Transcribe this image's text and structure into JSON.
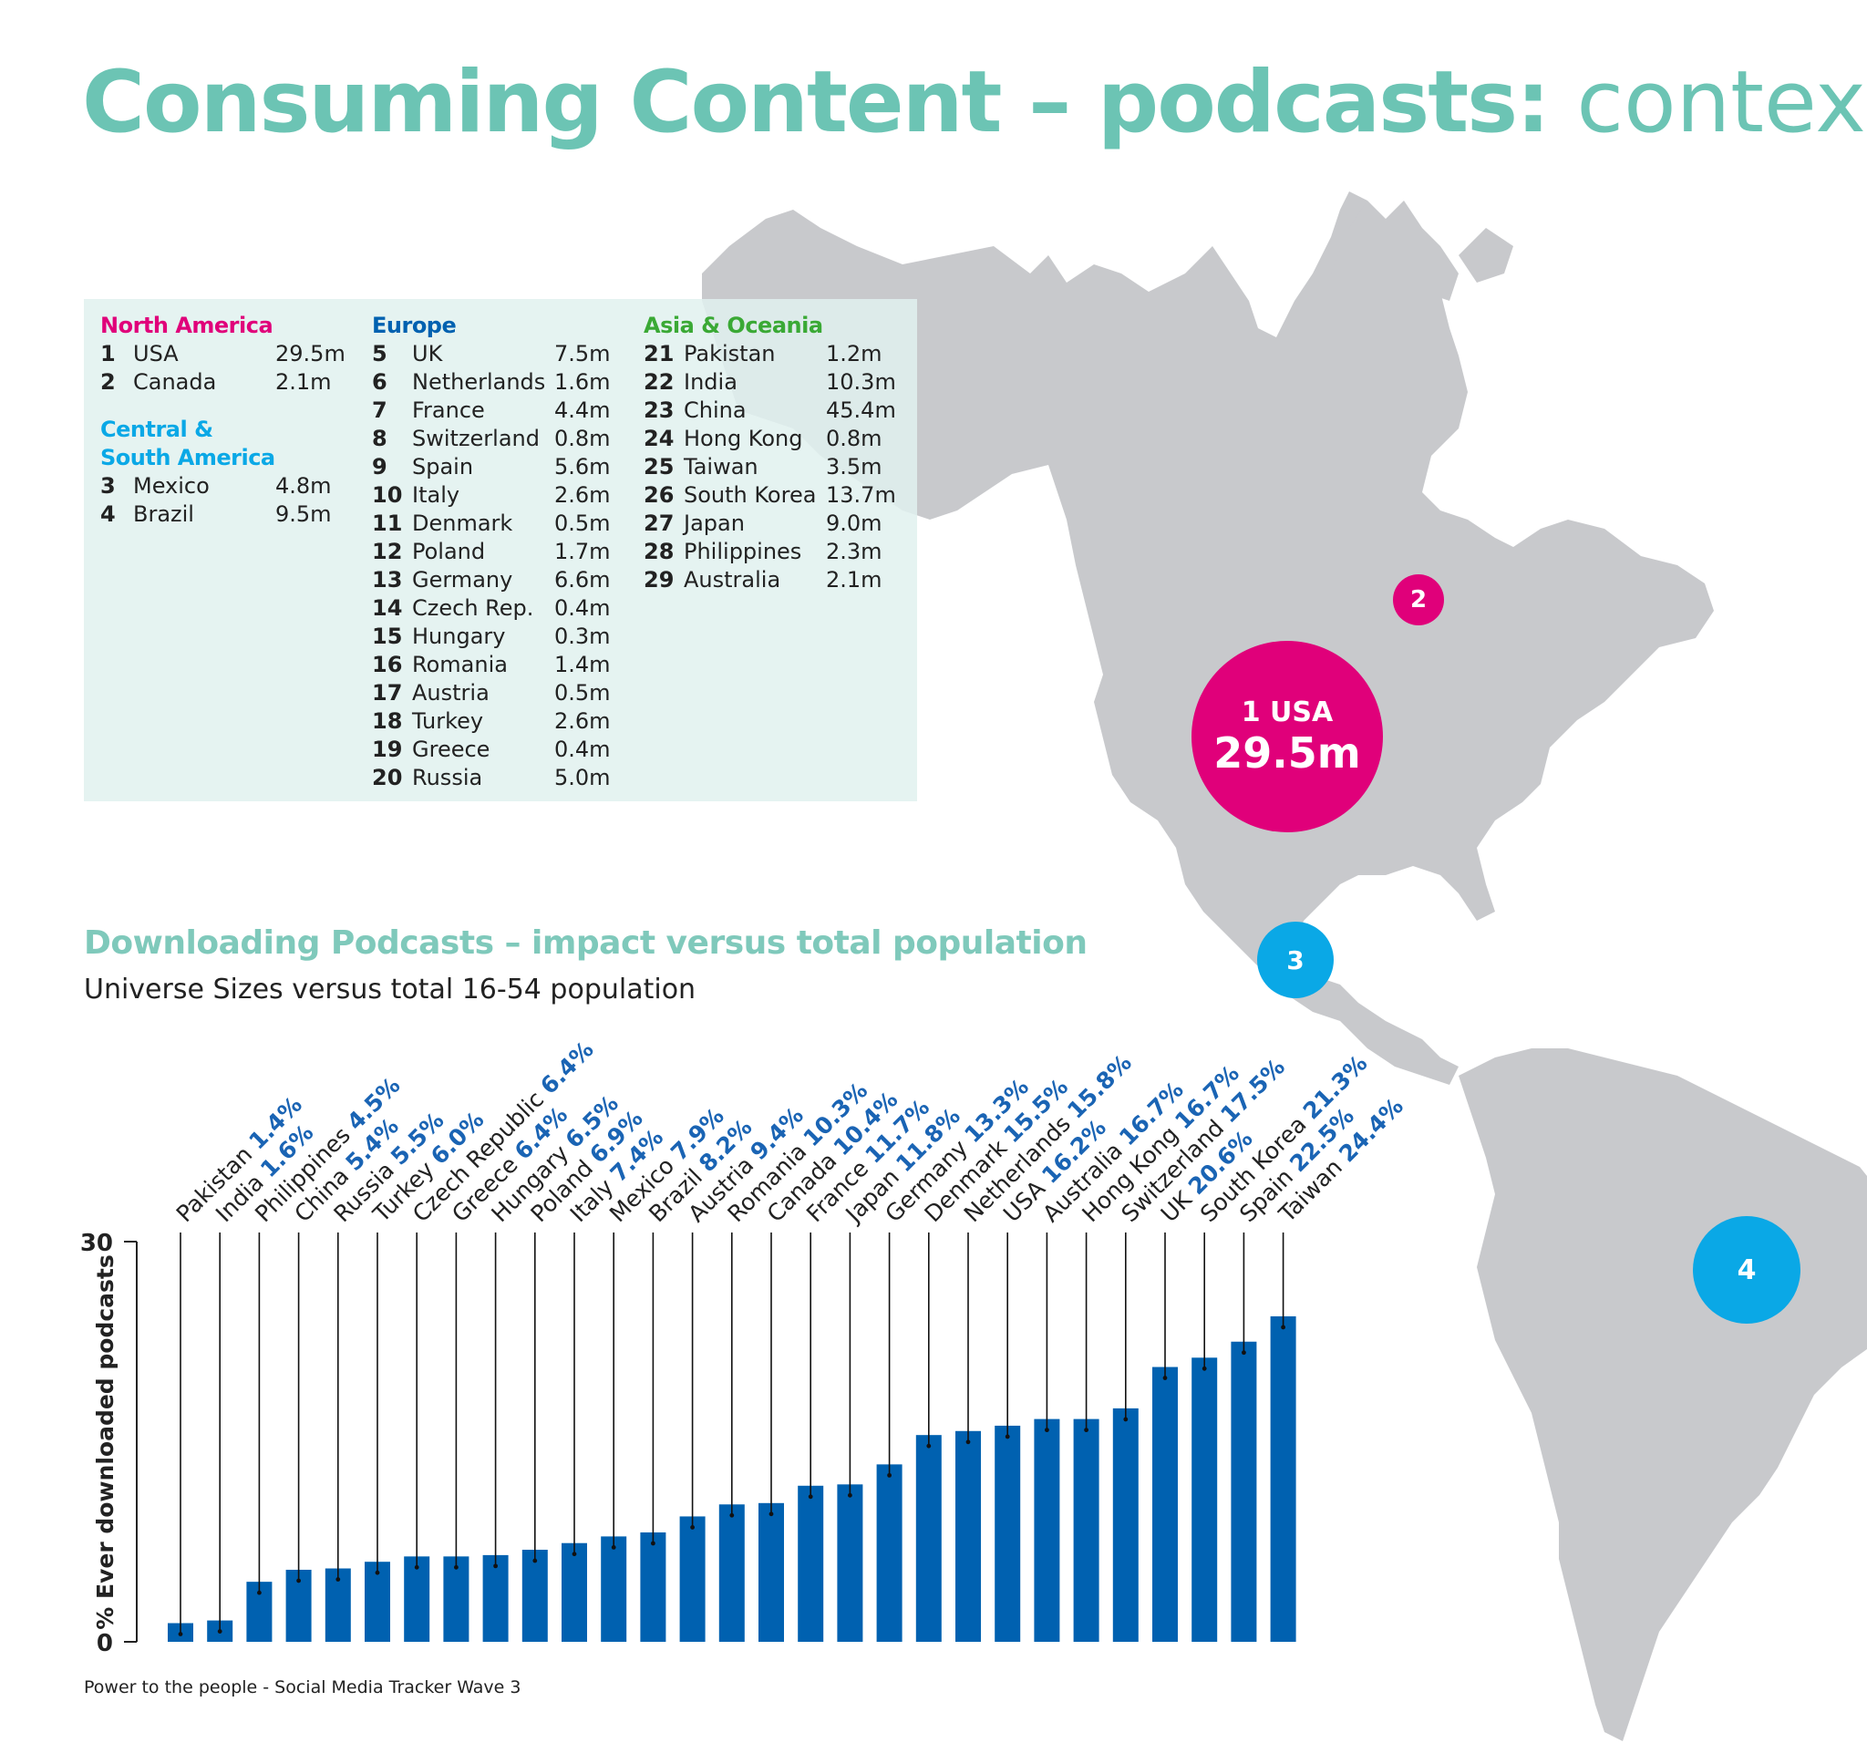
{
  "title": {
    "main": "Consuming Content – podcasts:",
    "light": "context"
  },
  "colors": {
    "teal": "#6cc4b4",
    "magenta": "#e0007a",
    "cyan": "#0aa8e6",
    "green": "#3aa935",
    "blue": "#0061b0",
    "map": "#c8c9cc"
  },
  "regions": {
    "north_america": {
      "label": "North America",
      "rows": [
        {
          "rank": "1",
          "name": "USA",
          "value": "29.5m"
        },
        {
          "rank": "2",
          "name": "Canada",
          "value": "2.1m"
        }
      ]
    },
    "south_america": {
      "label_line1": "Central &",
      "label_line2": "South America",
      "rows": [
        {
          "rank": "3",
          "name": "Mexico",
          "value": "4.8m"
        },
        {
          "rank": "4",
          "name": "Brazil",
          "value": "9.5m"
        }
      ]
    },
    "europe": {
      "label": "Europe",
      "rows": [
        {
          "rank": "5",
          "name": "UK",
          "value": "7.5m"
        },
        {
          "rank": "6",
          "name": "Netherlands",
          "value": "1.6m"
        },
        {
          "rank": "7",
          "name": "France",
          "value": "4.4m"
        },
        {
          "rank": "8",
          "name": "Switzerland",
          "value": "0.8m"
        },
        {
          "rank": "9",
          "name": "Spain",
          "value": "5.6m"
        },
        {
          "rank": "10",
          "name": "Italy",
          "value": "2.6m"
        },
        {
          "rank": "11",
          "name": "Denmark",
          "value": "0.5m"
        },
        {
          "rank": "12",
          "name": "Poland",
          "value": "1.7m"
        },
        {
          "rank": "13",
          "name": "Germany",
          "value": "6.6m"
        },
        {
          "rank": "14",
          "name": "Czech Rep.",
          "value": "0.4m"
        },
        {
          "rank": "15",
          "name": "Hungary",
          "value": "0.3m"
        },
        {
          "rank": "16",
          "name": "Romania",
          "value": "1.4m"
        },
        {
          "rank": "17",
          "name": "Austria",
          "value": "0.5m"
        },
        {
          "rank": "18",
          "name": "Turkey",
          "value": "2.6m"
        },
        {
          "rank": "19",
          "name": "Greece",
          "value": "0.4m"
        },
        {
          "rank": "20",
          "name": "Russia",
          "value": "5.0m"
        }
      ]
    },
    "asia": {
      "label": "Asia & Oceania",
      "rows": [
        {
          "rank": "21",
          "name": "Pakistan",
          "value": "1.2m"
        },
        {
          "rank": "22",
          "name": "India",
          "value": "10.3m"
        },
        {
          "rank": "23",
          "name": "China",
          "value": "45.4m"
        },
        {
          "rank": "24",
          "name": "Hong Kong",
          "value": "0.8m"
        },
        {
          "rank": "25",
          "name": "Taiwan",
          "value": "3.5m"
        },
        {
          "rank": "26",
          "name": "South Korea",
          "value": "13.7m"
        },
        {
          "rank": "27",
          "name": "Japan",
          "value": "9.0m"
        },
        {
          "rank": "28",
          "name": "Philippines",
          "value": "2.3m"
        },
        {
          "rank": "29",
          "name": "Australia",
          "value": "2.1m"
        }
      ]
    }
  },
  "bubbles": {
    "usa": {
      "line1": "1 USA",
      "line2": "29.5m"
    },
    "canada": {
      "label": "2"
    },
    "mexico": {
      "label": "3"
    },
    "brazil": {
      "label": "4"
    }
  },
  "subtitle": "Downloading Podcasts – impact versus total population",
  "subtitle2": "Universe Sizes versus total 16-54 population",
  "source": "Power to the people - Social Media Tracker Wave 3",
  "chart_data": {
    "type": "bar",
    "title": "Downloading Podcasts – impact versus total population",
    "ylabel": "% Ever downloaded podcasts",
    "xlabel": "",
    "ylim": [
      0,
      30
    ],
    "yticks": [
      "0",
      "30"
    ],
    "categories": [
      "Pakistan",
      "India",
      "Philippines",
      "China",
      "Russia",
      "Turkey",
      "Czech Republic",
      "Greece",
      "Hungary",
      "Poland",
      "Italy",
      "Mexico",
      "Brazil",
      "Austria",
      "Romania",
      "Canada",
      "France",
      "Japan",
      "Germany",
      "Denmark",
      "Netherlands",
      "USA",
      "Australia",
      "Hong Kong",
      "Switzerland",
      "UK",
      "South Korea",
      "Spain",
      "Taiwan"
    ],
    "values": [
      1.4,
      1.6,
      4.5,
      5.4,
      5.5,
      6.0,
      6.4,
      6.4,
      6.5,
      6.9,
      7.4,
      7.9,
      8.2,
      9.4,
      10.3,
      10.4,
      11.7,
      11.8,
      13.3,
      15.5,
      15.8,
      16.2,
      16.7,
      16.7,
      17.5,
      20.6,
      21.3,
      22.5,
      24.4
    ],
    "value_labels": [
      "1.4%",
      "1.6%",
      "4.5%",
      "5.4%",
      "5.5%",
      "6.0%",
      "6.4%",
      "6.4%",
      "6.5%",
      "6.9%",
      "7.4%",
      "7.9%",
      "8.2%",
      "9.4%",
      "10.3%",
      "10.4%",
      "11.7%",
      "11.8%",
      "13.3%",
      "15.5%",
      "15.8%",
      "16.2%",
      "16.7%",
      "16.7%",
      "17.5%",
      "20.6%",
      "21.3%",
      "22.5%",
      "24.4%"
    ],
    "bar_color": "#0061b0"
  }
}
